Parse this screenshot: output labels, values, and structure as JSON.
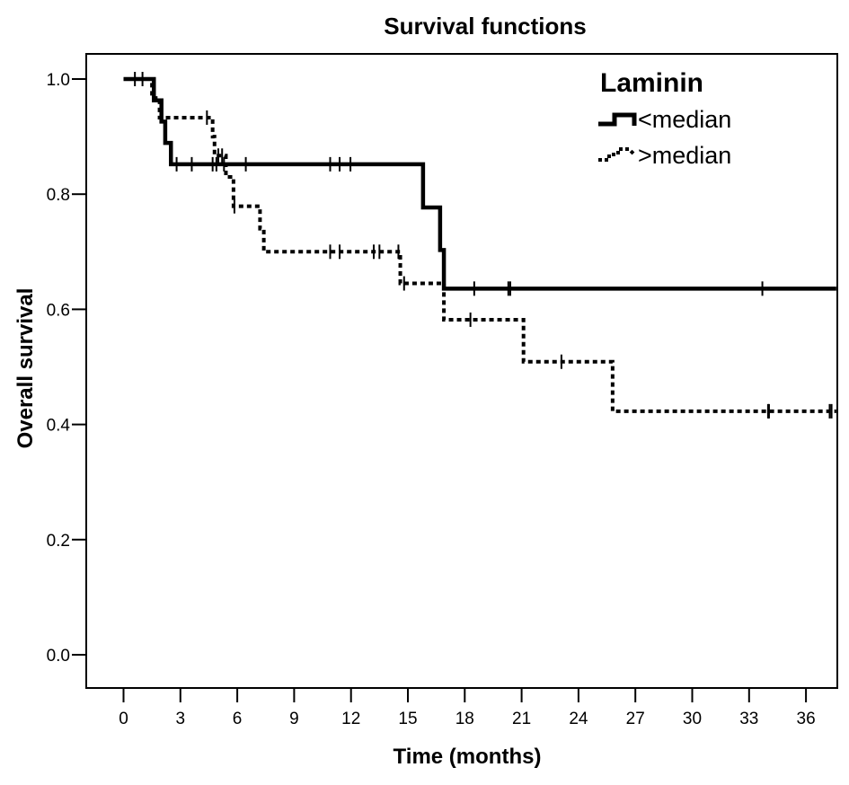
{
  "chart_data": {
    "type": "line",
    "subtype": "kaplan-meier step",
    "title": "Survival functions",
    "xlabel": "Time (months)",
    "ylabel": "Overall survival",
    "xlim": [
      -1.8,
      37.6
    ],
    "ylim": [
      -0.06,
      1.04
    ],
    "xticks": [
      "0",
      "3",
      "6",
      "9",
      "12",
      "15",
      "18",
      "21",
      "24",
      "27",
      "30",
      "33",
      "36"
    ],
    "yticks": [
      "0.0",
      "0.2",
      "0.4",
      "0.6",
      "0.8",
      "1.0"
    ],
    "grid": false,
    "legend": {
      "title": "Laminin",
      "placement": "top-right"
    },
    "series": [
      {
        "name": "<median",
        "line_style": "solid",
        "color": "#000000",
        "steps": [
          [
            0,
            1.0
          ],
          [
            1.6,
            0.963
          ],
          [
            2.0,
            0.926
          ],
          [
            2.2,
            0.889
          ],
          [
            2.5,
            0.852
          ],
          [
            15.8,
            0.777
          ],
          [
            16.7,
            0.703
          ],
          [
            16.9,
            0.636
          ]
        ],
        "end": 37.6,
        "censored": [
          0.6,
          1.0,
          2.8,
          3.6,
          4.7,
          4.9,
          5.3,
          6.45,
          10.9,
          11.4,
          11.97,
          18.5,
          20.3,
          20.4,
          33.7
        ]
      },
      {
        "name": ">median",
        "line_style": "dashed",
        "color": "#000000",
        "steps": [
          [
            0,
            1.0
          ],
          [
            1.5,
            0.967
          ],
          [
            1.9,
            0.933
          ],
          [
            4.7,
            0.9
          ],
          [
            4.8,
            0.867
          ],
          [
            5.4,
            0.83
          ],
          [
            5.8,
            0.779
          ],
          [
            7.2,
            0.74
          ],
          [
            7.4,
            0.7
          ],
          [
            14.6,
            0.645
          ],
          [
            16.9,
            0.582
          ],
          [
            21.1,
            0.509
          ],
          [
            25.8,
            0.423
          ]
        ],
        "end": 37.6,
        "censored": [
          4.4,
          5.0,
          5.2,
          5.85,
          10.9,
          11.4,
          13.2,
          13.5,
          14.5,
          14.8,
          18.3,
          23.1,
          34.0,
          34.05,
          37.25,
          37.35
        ]
      }
    ]
  }
}
